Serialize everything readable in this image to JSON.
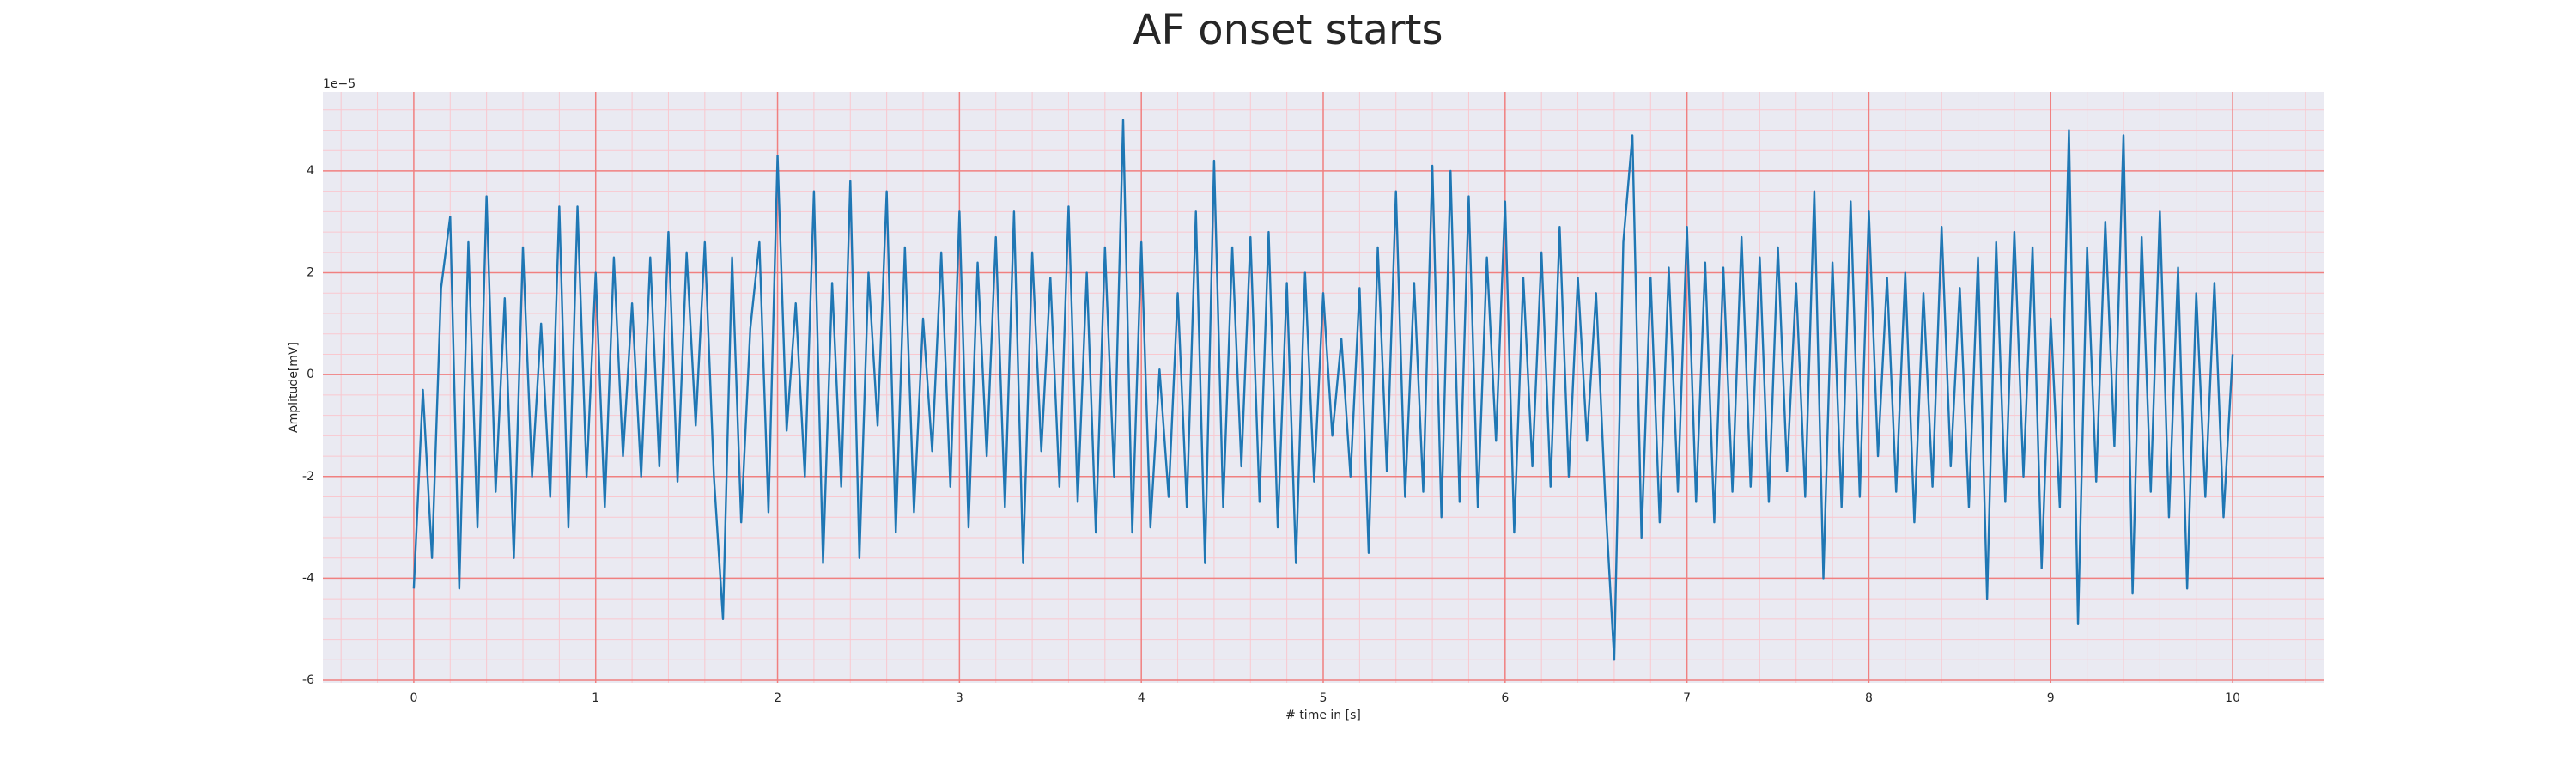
{
  "chart_data": {
    "type": "line",
    "title": "AF onset starts",
    "xlabel": "# time in [s]",
    "ylabel": "Amplitude[mV]",
    "y_offset_text": "1e−5",
    "color": "#1f77b4",
    "grid": true,
    "minor_grid": true,
    "background": "#eaeaf2",
    "grid_color": "#f08080",
    "minor_grid_color": "#f9c8cf",
    "xlim": [
      -0.5,
      10.5
    ],
    "xticks": [
      0,
      1,
      2,
      3,
      4,
      5,
      6,
      7,
      8,
      9,
      10
    ],
    "ylim": [
      -6.05,
      5.55
    ],
    "yticks": [
      -6,
      -4,
      -2,
      0,
      2,
      4
    ],
    "x": [
      0,
      0.05,
      0.1,
      0.15,
      0.2,
      0.25,
      0.3,
      0.35,
      0.4,
      0.45,
      0.5,
      0.55,
      0.6,
      0.65,
      0.7,
      0.75,
      0.8,
      0.85,
      0.9,
      0.95,
      1,
      1.05,
      1.1,
      1.15,
      1.2,
      1.25,
      1.3,
      1.35,
      1.4,
      1.45,
      1.5,
      1.55,
      1.6,
      1.65,
      1.7,
      1.75,
      1.8,
      1.85,
      1.9,
      1.95,
      2,
      2.05,
      2.1,
      2.15,
      2.2,
      2.25,
      2.3,
      2.35,
      2.4,
      2.45,
      2.5,
      2.55,
      2.6,
      2.65,
      2.7,
      2.75,
      2.8,
      2.85,
      2.9,
      2.95,
      3,
      3.05,
      3.1,
      3.15,
      3.2,
      3.25,
      3.3,
      3.35,
      3.4,
      3.45,
      3.5,
      3.55,
      3.6,
      3.65,
      3.7,
      3.75,
      3.8,
      3.85,
      3.9,
      3.95,
      4,
      4.05,
      4.1,
      4.15,
      4.2,
      4.25,
      4.3,
      4.35,
      4.4,
      4.45,
      4.5,
      4.55,
      4.6,
      4.65,
      4.7,
      4.75,
      4.8,
      4.85,
      4.9,
      4.95,
      5,
      5.05,
      5.1,
      5.15,
      5.2,
      5.25,
      5.3,
      5.35,
      5.4,
      5.45,
      5.5,
      5.55,
      5.6,
      5.65,
      5.7,
      5.75,
      5.8,
      5.85,
      5.9,
      5.95,
      6,
      6.05,
      6.1,
      6.15,
      6.2,
      6.25,
      6.3,
      6.35,
      6.4,
      6.45,
      6.5,
      6.55,
      6.6,
      6.65,
      6.7,
      6.75,
      6.8,
      6.85,
      6.9,
      6.95,
      7,
      7.05,
      7.1,
      7.15,
      7.2,
      7.25,
      7.3,
      7.35,
      7.4,
      7.45,
      7.5,
      7.55,
      7.6,
      7.65,
      7.7,
      7.75,
      7.8,
      7.85,
      7.9,
      7.95,
      8,
      8.05,
      8.1,
      8.15,
      8.2,
      8.25,
      8.3,
      8.35,
      8.4,
      8.45,
      8.5,
      8.55,
      8.6,
      8.65,
      8.7,
      8.75,
      8.8,
      8.85,
      8.9,
      8.95,
      9,
      9.05,
      9.1,
      9.15,
      9.2,
      9.25,
      9.3,
      9.35,
      9.4,
      9.45,
      9.5,
      9.55,
      9.6,
      9.65,
      9.7,
      9.75,
      9.8,
      9.85,
      9.9,
      9.95,
      10
    ],
    "values": [
      -4.2,
      -0.3,
      -3.6,
      1.7,
      3.1,
      -4.2,
      2.6,
      -3.0,
      3.5,
      -2.3,
      1.5,
      -3.6,
      2.5,
      -2.0,
      1.0,
      -2.4,
      3.3,
      -3.0,
      3.3,
      -2.0,
      2.0,
      -2.6,
      2.3,
      -1.6,
      1.4,
      -2.0,
      2.3,
      -1.8,
      2.8,
      -2.1,
      2.4,
      -1.0,
      2.6,
      -2.0,
      -4.8,
      2.3,
      -2.9,
      0.9,
      2.6,
      -2.7,
      4.3,
      -1.1,
      1.4,
      -2.0,
      3.6,
      -3.7,
      1.8,
      -2.2,
      3.8,
      -3.6,
      2.0,
      -1.0,
      3.6,
      -3.1,
      2.5,
      -2.7,
      1.1,
      -1.5,
      2.4,
      -2.2,
      3.2,
      -3.0,
      2.2,
      -1.6,
      2.7,
      -2.6,
      3.2,
      -3.7,
      2.4,
      -1.5,
      1.9,
      -2.2,
      3.3,
      -2.5,
      2.0,
      -3.1,
      2.5,
      -2.0,
      5.0,
      -3.1,
      2.6,
      -3.0,
      0.1,
      -2.4,
      1.6,
      -2.6,
      3.2,
      -3.7,
      4.2,
      -2.6,
      2.5,
      -1.8,
      2.7,
      -2.5,
      2.8,
      -3.0,
      1.8,
      -3.7,
      2.0,
      -2.1,
      1.6,
      -1.2,
      0.7,
      -2.0,
      1.7,
      -3.5,
      2.5,
      -1.9,
      3.6,
      -2.4,
      1.8,
      -2.3,
      4.1,
      -2.8,
      4.0,
      -2.5,
      3.5,
      -2.6,
      2.3,
      -1.3,
      3.4,
      -3.1,
      1.9,
      -1.8,
      2.4,
      -2.2,
      2.9,
      -2.0,
      1.9,
      -1.3,
      1.6,
      -2.4,
      -5.6,
      2.6,
      4.7,
      -3.2,
      1.9,
      -2.9,
      2.1,
      -2.3,
      2.9,
      -2.5,
      2.2,
      -2.9,
      2.1,
      -2.3,
      2.7,
      -2.2,
      2.3,
      -2.5,
      2.5,
      -1.9,
      1.8,
      -2.4,
      3.6,
      -4.0,
      2.2,
      -2.6,
      3.4,
      -2.4,
      3.2,
      -1.6,
      1.9,
      -2.3,
      2.0,
      -2.9,
      1.6,
      -2.2,
      2.9,
      -1.8,
      1.7,
      -2.6,
      2.3,
      -4.4,
      2.6,
      -2.5,
      2.8,
      -2.0,
      2.5,
      -3.8,
      1.1,
      -2.6,
      4.8,
      -4.9,
      2.5,
      -2.1,
      3.0,
      -1.4,
      4.7,
      -4.3,
      2.7,
      -2.3,
      3.2,
      -2.8,
      2.1,
      -4.2,
      1.6,
      -2.4,
      1.8,
      -2.8,
      0.4
    ]
  }
}
